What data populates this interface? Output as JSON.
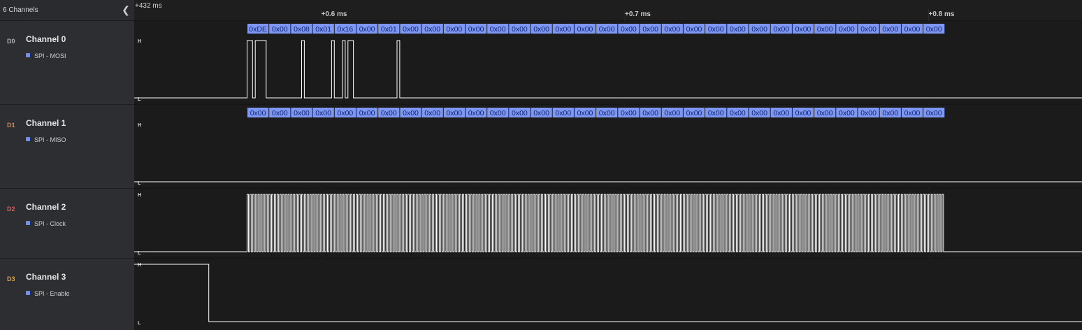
{
  "sidebar": {
    "title": "6 Channels",
    "collapse_icon": "chevron-left-icon",
    "channels": [
      {
        "tag": "D0",
        "name": "Channel 0",
        "analyzer": "SPI - MOSI",
        "color": "#b3b3b3"
      },
      {
        "tag": "D1",
        "name": "Channel 1",
        "analyzer": "SPI - MISO",
        "color": "#d6845a"
      },
      {
        "tag": "D2",
        "name": "Channel 2",
        "analyzer": "SPI - Clock",
        "color": "#e05a5a"
      },
      {
        "tag": "D3",
        "name": "Channel 3",
        "analyzer": "SPI - Enable",
        "color": "#e3a13a"
      }
    ]
  },
  "timeline": {
    "origin_label": "+432 ms",
    "ticks": [
      {
        "label": "+0.6 ms",
        "t": 0.6
      },
      {
        "label": "+0.7 ms",
        "t": 0.7
      },
      {
        "label": "+0.8 ms",
        "t": 0.8
      }
    ]
  },
  "levels": {
    "high": "H",
    "low": "L"
  },
  "colors": {
    "accent": "#6f8ff7",
    "decode_bg": "#7d97f2",
    "decode_text": "#102270",
    "trace": "#ffffff"
  },
  "spi": {
    "start_ms": 0.5756,
    "byte_ms": 0.00718,
    "mosi": [
      "0xDE",
      "0x00",
      "0x08",
      "0x01",
      "0x16",
      "0x00",
      "0x01",
      "0x00",
      "0x00",
      "0x00",
      "0x00",
      "0x00",
      "0x00",
      "0x00",
      "0x00",
      "0x00",
      "0x00",
      "0x00",
      "0x00",
      "0x00",
      "0x00",
      "0x00",
      "0x00",
      "0x00",
      "0x00",
      "0x00",
      "0x00",
      "0x00",
      "0x00",
      "0x00",
      "0x00",
      "0x00"
    ],
    "miso": [
      "0x00",
      "0x00",
      "0x00",
      "0x00",
      "0x00",
      "0x00",
      "0x00",
      "0x00",
      "0x00",
      "0x00",
      "0x00",
      "0x00",
      "0x00",
      "0x00",
      "0x00",
      "0x00",
      "0x00",
      "0x00",
      "0x00",
      "0x00",
      "0x00",
      "0x00",
      "0x00",
      "0x00",
      "0x00",
      "0x00",
      "0x00",
      "0x00",
      "0x00",
      "0x00",
      "0x00",
      "0x00"
    ],
    "enable_low_ms": [
      0.563,
      0.854
    ]
  }
}
